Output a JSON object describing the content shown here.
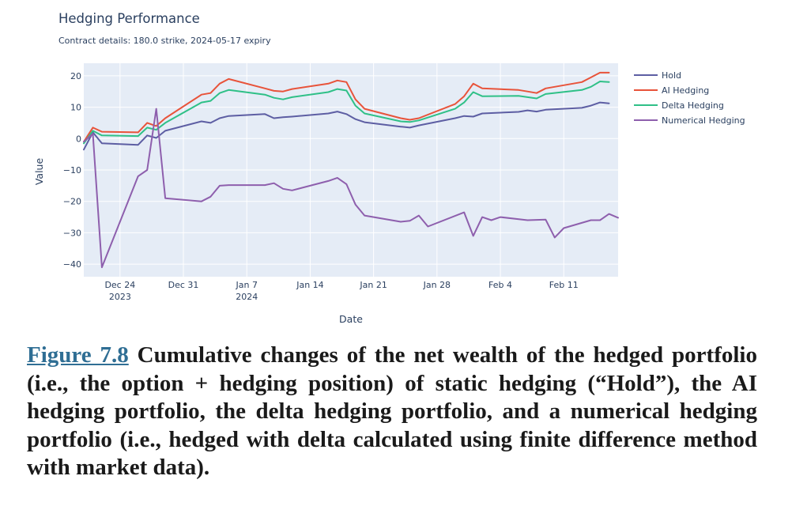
{
  "chart_data": {
    "type": "line",
    "title": "Hedging Performance",
    "subtitle": "Contract details: 180.0 strike, 2024-05-17 expiry",
    "xlabel": "Date",
    "ylabel": "Value",
    "x_ticks": [
      {
        "date": "2023-12-24",
        "label": "Dec 24",
        "sublabel": "2023"
      },
      {
        "date": "2023-12-31",
        "label": "Dec 31",
        "sublabel": ""
      },
      {
        "date": "2024-01-07",
        "label": "Jan 7",
        "sublabel": "2024"
      },
      {
        "date": "2024-01-14",
        "label": "Jan 14",
        "sublabel": ""
      },
      {
        "date": "2024-01-21",
        "label": "Jan 21",
        "sublabel": ""
      },
      {
        "date": "2024-01-28",
        "label": "Jan 28",
        "sublabel": ""
      },
      {
        "date": "2024-02-04",
        "label": "Feb 4",
        "sublabel": ""
      },
      {
        "date": "2024-02-11",
        "label": "Feb 11",
        "sublabel": ""
      }
    ],
    "y_ticks": [
      20,
      10,
      0,
      -10,
      -20,
      -30,
      -40
    ],
    "ylim": [
      -44,
      24
    ],
    "xlim": [
      "2023-12-20",
      "2024-02-17"
    ],
    "grid": true,
    "legend_position": "top-right",
    "series": [
      {
        "name": "Hold",
        "color": "#5d5ea3",
        "points": [
          [
            "2023-12-20",
            -3.5
          ],
          [
            "2023-12-21",
            2.0
          ],
          [
            "2023-12-22",
            -1.5
          ],
          [
            "2023-12-26",
            -2.0
          ],
          [
            "2023-12-27",
            1.0
          ],
          [
            "2023-12-28",
            0.2
          ],
          [
            "2023-12-29",
            2.5
          ],
          [
            "2024-01-02",
            5.5
          ],
          [
            "2024-01-03",
            5.0
          ],
          [
            "2024-01-04",
            6.5
          ],
          [
            "2024-01-05",
            7.2
          ],
          [
            "2024-01-09",
            7.8
          ],
          [
            "2024-01-10",
            6.5
          ],
          [
            "2024-01-11",
            6.8
          ],
          [
            "2024-01-12",
            7.0
          ],
          [
            "2024-01-16",
            8.0
          ],
          [
            "2024-01-17",
            8.6
          ],
          [
            "2024-01-18",
            7.8
          ],
          [
            "2024-01-19",
            6.2
          ],
          [
            "2024-01-20",
            5.2
          ],
          [
            "2024-01-24",
            3.8
          ],
          [
            "2024-01-25",
            3.5
          ],
          [
            "2024-01-26",
            4.2
          ],
          [
            "2024-01-30",
            6.5
          ],
          [
            "2024-01-31",
            7.2
          ],
          [
            "2024-02-01",
            7.0
          ],
          [
            "2024-02-02",
            8.0
          ],
          [
            "2024-02-06",
            8.5
          ],
          [
            "2024-02-07",
            9.0
          ],
          [
            "2024-02-08",
            8.6
          ],
          [
            "2024-02-09",
            9.2
          ],
          [
            "2024-02-13",
            9.8
          ],
          [
            "2024-02-14",
            10.5
          ],
          [
            "2024-02-15",
            11.5
          ],
          [
            "2024-02-16",
            11.2
          ]
        ]
      },
      {
        "name": "AI Hedging",
        "color": "#e8533a",
        "points": [
          [
            "2023-12-20",
            -1.0
          ],
          [
            "2023-12-21",
            3.5
          ],
          [
            "2023-12-22",
            2.2
          ],
          [
            "2023-12-26",
            2.0
          ],
          [
            "2023-12-27",
            5.0
          ],
          [
            "2023-12-28",
            4.0
          ],
          [
            "2023-12-29",
            6.5
          ],
          [
            "2024-01-02",
            14.0
          ],
          [
            "2024-01-03",
            14.5
          ],
          [
            "2024-01-04",
            17.5
          ],
          [
            "2024-01-05",
            19.0
          ],
          [
            "2024-01-09",
            16.0
          ],
          [
            "2024-01-10",
            15.2
          ],
          [
            "2024-01-11",
            15.0
          ],
          [
            "2024-01-12",
            15.8
          ],
          [
            "2024-01-16",
            17.5
          ],
          [
            "2024-01-17",
            18.5
          ],
          [
            "2024-01-18",
            18.0
          ],
          [
            "2024-01-19",
            12.5
          ],
          [
            "2024-01-20",
            9.5
          ],
          [
            "2024-01-24",
            6.5
          ],
          [
            "2024-01-25",
            6.0
          ],
          [
            "2024-01-26",
            6.5
          ],
          [
            "2024-01-30",
            11.0
          ],
          [
            "2024-01-31",
            13.5
          ],
          [
            "2024-02-01",
            17.5
          ],
          [
            "2024-02-02",
            16.0
          ],
          [
            "2024-02-06",
            15.5
          ],
          [
            "2024-02-07",
            15.0
          ],
          [
            "2024-02-08",
            14.5
          ],
          [
            "2024-02-09",
            16.0
          ],
          [
            "2024-02-13",
            18.0
          ],
          [
            "2024-02-14",
            19.5
          ],
          [
            "2024-02-15",
            21.0
          ],
          [
            "2024-02-16",
            21.0
          ]
        ]
      },
      {
        "name": "Delta Hedging",
        "color": "#2fc087",
        "points": [
          [
            "2023-12-20",
            -1.5
          ],
          [
            "2023-12-21",
            2.5
          ],
          [
            "2023-12-22",
            1.0
          ],
          [
            "2023-12-26",
            0.8
          ],
          [
            "2023-12-27",
            3.5
          ],
          [
            "2023-12-28",
            2.8
          ],
          [
            "2023-12-29",
            5.0
          ],
          [
            "2024-01-02",
            11.5
          ],
          [
            "2024-01-03",
            12.0
          ],
          [
            "2024-01-04",
            14.5
          ],
          [
            "2024-01-05",
            15.5
          ],
          [
            "2024-01-09",
            14.0
          ],
          [
            "2024-01-10",
            13.0
          ],
          [
            "2024-01-11",
            12.5
          ],
          [
            "2024-01-12",
            13.2
          ],
          [
            "2024-01-16",
            14.8
          ],
          [
            "2024-01-17",
            15.8
          ],
          [
            "2024-01-18",
            15.3
          ],
          [
            "2024-01-19",
            10.5
          ],
          [
            "2024-01-20",
            8.0
          ],
          [
            "2024-01-24",
            5.5
          ],
          [
            "2024-01-25",
            5.3
          ],
          [
            "2024-01-26",
            5.8
          ],
          [
            "2024-01-30",
            9.5
          ],
          [
            "2024-01-31",
            11.5
          ],
          [
            "2024-02-01",
            14.8
          ],
          [
            "2024-02-02",
            13.5
          ],
          [
            "2024-02-06",
            13.6
          ],
          [
            "2024-02-07",
            13.2
          ],
          [
            "2024-02-08",
            12.8
          ],
          [
            "2024-02-09",
            14.2
          ],
          [
            "2024-02-13",
            15.5
          ],
          [
            "2024-02-14",
            16.5
          ],
          [
            "2024-02-15",
            18.2
          ],
          [
            "2024-02-16",
            18.0
          ]
        ]
      },
      {
        "name": "Numerical Hedging",
        "color": "#8e5fad",
        "points": [
          [
            "2023-12-20",
            -1.0
          ],
          [
            "2023-12-21",
            1.5
          ],
          [
            "2023-12-22",
            -41.0
          ],
          [
            "2023-12-26",
            -12.0
          ],
          [
            "2023-12-27",
            -10.0
          ],
          [
            "2023-12-28",
            9.5
          ],
          [
            "2023-12-29",
            -19.0
          ],
          [
            "2024-01-02",
            -20.0
          ],
          [
            "2024-01-03",
            -18.5
          ],
          [
            "2024-01-04",
            -15.0
          ],
          [
            "2024-01-05",
            -14.8
          ],
          [
            "2024-01-09",
            -14.8
          ],
          [
            "2024-01-10",
            -14.2
          ],
          [
            "2024-01-11",
            -16.0
          ],
          [
            "2024-01-12",
            -16.5
          ],
          [
            "2024-01-16",
            -13.5
          ],
          [
            "2024-01-17",
            -12.5
          ],
          [
            "2024-01-18",
            -14.5
          ],
          [
            "2024-01-19",
            -21.0
          ],
          [
            "2024-01-20",
            -24.5
          ],
          [
            "2024-01-24",
            -26.5
          ],
          [
            "2024-01-25",
            -26.2
          ],
          [
            "2024-01-26",
            -24.5
          ],
          [
            "2024-01-27",
            -28.0
          ],
          [
            "2024-01-31",
            -23.5
          ],
          [
            "2024-02-01",
            -31.0
          ],
          [
            "2024-02-02",
            -25.0
          ],
          [
            "2024-02-03",
            -26.0
          ],
          [
            "2024-02-04",
            -25.0
          ],
          [
            "2024-02-07",
            -26.0
          ],
          [
            "2024-02-09",
            -25.8
          ],
          [
            "2024-02-10",
            -31.5
          ],
          [
            "2024-02-11",
            -28.5
          ],
          [
            "2024-02-14",
            -26.0
          ],
          [
            "2024-02-15",
            -26.0
          ],
          [
            "2024-02-16",
            -24.0
          ],
          [
            "2024-02-17",
            -25.2
          ]
        ]
      }
    ]
  },
  "colors": {
    "plot_background": "#e5ecf6",
    "gridline": "#ffffff",
    "axis_text": "#2a3f5f",
    "caption_link": "#2f6e94"
  },
  "caption": {
    "figure_label": "Figure 7.8",
    "text": " Cumulative changes of the net wealth of the hedged portfolio (i.e., the option + hedging position) of static hedging (“Hold”), the AI hedging portfolio, the delta hedging portfolio, and a numerical hedging portfolio (i.e., hedged with delta calculated using finite difference method with market data)."
  }
}
